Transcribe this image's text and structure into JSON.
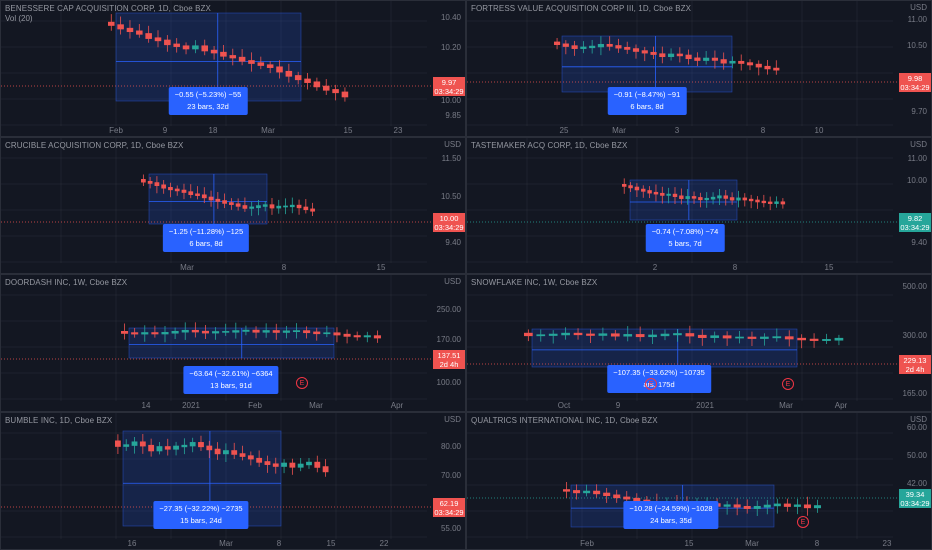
{
  "colors": {
    "up": "#26a69a",
    "down": "#ef5350",
    "range_box": "#2962ff",
    "tooltip": "#2962ff",
    "background": "#131722",
    "grid": "#2a2e39"
  },
  "panels": [
    {
      "id": "benessere",
      "title": "BENESSERE CAP ACQUISITION CORP, 1D, Cboe BZX",
      "subtitle": "Vol (20)",
      "currency": "",
      "y_labels": [
        "10.40",
        "10.20",
        "10.00",
        "9.85"
      ],
      "x_labels": [
        "Feb",
        "9",
        "18",
        "Mar",
        "15",
        "23"
      ],
      "price": "9.97",
      "price_time": "03:34:29",
      "price_color": "#ef5350",
      "tooltip_line1": "−0.55 (−5.23%) −55",
      "tooltip_line2": "23 bars, 32d",
      "has_earnings": false
    },
    {
      "id": "fortress",
      "title": "FORTRESS VALUE ACQUISITION CORP III, 1D, Cboe BZX",
      "subtitle": "",
      "currency": "USD",
      "y_labels": [
        "11.00",
        "10.50",
        "9.70"
      ],
      "x_labels": [
        "25",
        "Mar",
        "3",
        "8",
        "10"
      ],
      "price": "9.98",
      "price_time": "03:34:29",
      "price_color": "#ef5350",
      "tooltip_line1": "−0.91 (−8.47%) −91",
      "tooltip_line2": "6 bars, 8d",
      "has_earnings": false
    },
    {
      "id": "crucible",
      "title": "CRUCIBLE ACQUISITION CORP, 1D, Cboe BZX",
      "subtitle": "",
      "currency": "USD",
      "y_labels": [
        "11.50",
        "10.50",
        "9.40"
      ],
      "x_labels": [
        "Mar",
        "8",
        "15"
      ],
      "price": "10.00",
      "price_time": "03:34:29",
      "price_color": "#ef5350",
      "tooltip_line1": "−1.25 (−11.28%) −125",
      "tooltip_line2": "6 bars, 8d",
      "has_earnings": false
    },
    {
      "id": "tastemaker",
      "title": "TASTEMAKER ACQ CORP, 1D, Cboe BZX",
      "subtitle": "",
      "currency": "USD",
      "y_labels": [
        "11.00",
        "10.00",
        "9.40"
      ],
      "x_labels": [
        "2",
        "8",
        "15"
      ],
      "price": "9.82",
      "price_time": "03:34:29",
      "price_color": "#26a69a",
      "tooltip_line1": "−0.74 (−7.08%) −74",
      "tooltip_line2": "5 bars, 7d",
      "has_earnings": false
    },
    {
      "id": "doordash",
      "title": "DOORDASH INC, 1W, Cboe BZX",
      "subtitle": "",
      "currency": "USD",
      "y_labels": [
        "250.00",
        "170.00",
        "100.00"
      ],
      "x_labels": [
        "14",
        "2021",
        "Feb",
        "Mar",
        "Apr"
      ],
      "price": "137.51",
      "price_time": "2d 4h",
      "price_color": "#ef5350",
      "tooltip_line1": "−63.64 (−32.61%) −6364",
      "tooltip_line2": "13 bars, 91d",
      "has_earnings": true
    },
    {
      "id": "snowflake",
      "title": "SNOWFLAKE INC, 1W, Cboe BZX",
      "subtitle": "",
      "currency": "",
      "y_labels": [
        "500.00",
        "300.00",
        "165.00"
      ],
      "x_labels": [
        "Oct",
        "9",
        "2021",
        "Mar",
        "Apr"
      ],
      "price": "229.13",
      "price_time": "2d 4h",
      "price_color": "#ef5350",
      "tooltip_line1": "−107.35 (−33.62%) −10735",
      "tooltip_line2": "ars, 175d",
      "has_earnings": true
    },
    {
      "id": "bumble",
      "title": "BUMBLE INC, 1D, Cboe BZX",
      "subtitle": "",
      "currency": "USD",
      "y_labels": [
        "80.00",
        "70.00",
        "55.00"
      ],
      "x_labels": [
        "16",
        "Mar",
        "8",
        "15",
        "22"
      ],
      "price": "62.19",
      "price_time": "03:34:29",
      "price_color": "#ef5350",
      "tooltip_line1": "−27.35 (−32.22%) −2735",
      "tooltip_line2": "15 bars, 24d",
      "has_earnings": false
    },
    {
      "id": "qualtrics",
      "title": "QUALTRICS INTERNATIONAL INC, 1D, Cboe BZX",
      "subtitle": "",
      "currency": "USD",
      "y_labels": [
        "60.00",
        "50.00",
        "42.00"
      ],
      "x_labels": [
        "Feb",
        "15",
        "Mar",
        "8",
        "23"
      ],
      "price": "39.34",
      "price_time": "03:34:29",
      "price_color": "#26a69a",
      "tooltip_line1": "−10.28 (−24.59%) −1028",
      "tooltip_line2": "24 bars, 35d",
      "has_earnings": true
    }
  ]
}
